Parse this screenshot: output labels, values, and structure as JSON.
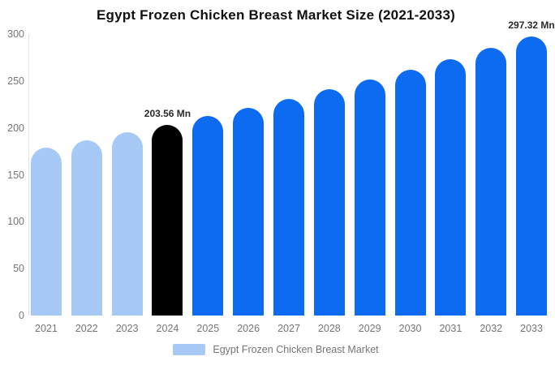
{
  "title": "Egypt Frozen Chicken Breast Market Size (2021-2033)",
  "colors": {
    "bar_default": "#0d6bf2",
    "bar_past": "#a6c9f5",
    "bar_highlight": "#000000",
    "axis_label": "#757575",
    "data_label": "#2b2b2b",
    "axis_line": "#e3e3e3",
    "title": "#111111"
  },
  "legend": {
    "label": "Egypt Frozen Chicken Breast Market",
    "swatch_color": "#a6c9f5"
  },
  "chart_data": {
    "type": "bar",
    "title": "Egypt Frozen Chicken Breast Market Size (2021-2033)",
    "categories": [
      "2021",
      "2022",
      "2023",
      "2024",
      "2025",
      "2026",
      "2027",
      "2028",
      "2029",
      "2030",
      "2031",
      "2032",
      "2033"
    ],
    "series": [
      {
        "name": "Egypt Frozen Chicken Breast Market",
        "values": [
          179.4,
          187.1,
          195.2,
          203.56,
          212.3,
          221.4,
          231.0,
          240.9,
          251.2,
          262.1,
          273.3,
          285.1,
          297.32
        ]
      }
    ],
    "unit": "Mn",
    "bar_styles": [
      "past",
      "past",
      "past",
      "highlight",
      "default",
      "default",
      "default",
      "default",
      "default",
      "default",
      "default",
      "default",
      "default"
    ],
    "data_labels": [
      {
        "index": 3,
        "text": "203.56 Mn"
      },
      {
        "index": 12,
        "text": "297.32 Mn"
      }
    ],
    "y_ticks": [
      0,
      50,
      100,
      150,
      200,
      250,
      300
    ],
    "ylim": [
      0,
      300
    ],
    "xlabel": "",
    "ylabel": "",
    "grid": false,
    "legend_position": "bottom"
  }
}
